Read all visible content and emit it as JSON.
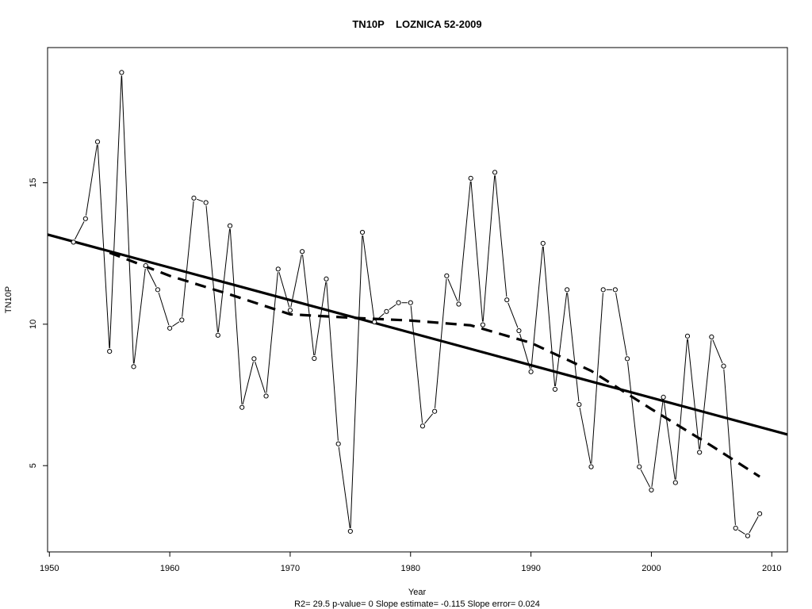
{
  "chart_data": {
    "type": "line",
    "title": "TN10P    LOZNICA 52-2009",
    "xlabel": "Year",
    "ylabel": "TN10P",
    "footer": "R2= 29.5  p-value= 0  Slope estimate= -0.115  Slope error= 0.024",
    "xlim": [
      1949.85,
      2011.3
    ],
    "ylim": [
      1.95,
      19.78
    ],
    "xticks": [
      1950,
      1960,
      1970,
      1980,
      1990,
      2000,
      2010
    ],
    "yticks": [
      5,
      10,
      15
    ],
    "grid": false,
    "series": [
      {
        "style": "thin line with open circle markers",
        "x": [
          1952,
          1953,
          1954,
          1955,
          1956,
          1957,
          1958,
          1959,
          1960,
          1961,
          1962,
          1963,
          1964,
          1965,
          1966,
          1967,
          1968,
          1969,
          1970,
          1971,
          1972,
          1973,
          1974,
          1975,
          1976,
          1977,
          1978,
          1979,
          1980,
          1981,
          1982,
          1983,
          1984,
          1985,
          1986,
          1987,
          1988,
          1989,
          1990,
          1991,
          1992,
          1993,
          1994,
          1995,
          1996,
          1997,
          1998,
          1999,
          2000,
          2001,
          2002,
          2003,
          2004,
          2005,
          2006,
          2007,
          2008,
          2009
        ],
        "y": [
          12.9,
          13.73,
          16.45,
          9.04,
          18.9,
          8.5,
          12.07,
          11.22,
          9.86,
          10.15,
          14.46,
          14.3,
          9.61,
          13.48,
          7.06,
          8.78,
          7.46,
          11.95,
          10.49,
          12.57,
          8.79,
          11.6,
          5.77,
          2.68,
          13.25,
          10.08,
          10.45,
          10.76,
          10.76,
          6.4,
          6.92,
          11.71,
          10.71,
          15.16,
          9.98,
          15.37,
          10.86,
          9.77,
          8.32,
          12.86,
          7.7,
          11.22,
          7.16,
          4.96,
          11.22,
          11.22,
          8.78,
          4.96,
          4.14,
          7.42,
          4.4,
          9.58,
          5.47,
          9.55,
          8.52,
          2.79,
          2.52,
          3.3
        ]
      },
      {
        "style": "solid thick linear trend",
        "x": [
          1949.85,
          2011.3
        ],
        "y": [
          13.17,
          6.1
        ]
      },
      {
        "style": "dashed thick smoothed trend",
        "x": [
          1955,
          1960,
          1965,
          1970,
          1975,
          1980,
          1985,
          1990,
          1995,
          2000,
          2005,
          2009
        ],
        "y": [
          12.53,
          11.71,
          11.05,
          10.35,
          10.23,
          10.13,
          9.96,
          9.34,
          8.35,
          7.0,
          5.7,
          4.61
        ]
      }
    ]
  }
}
